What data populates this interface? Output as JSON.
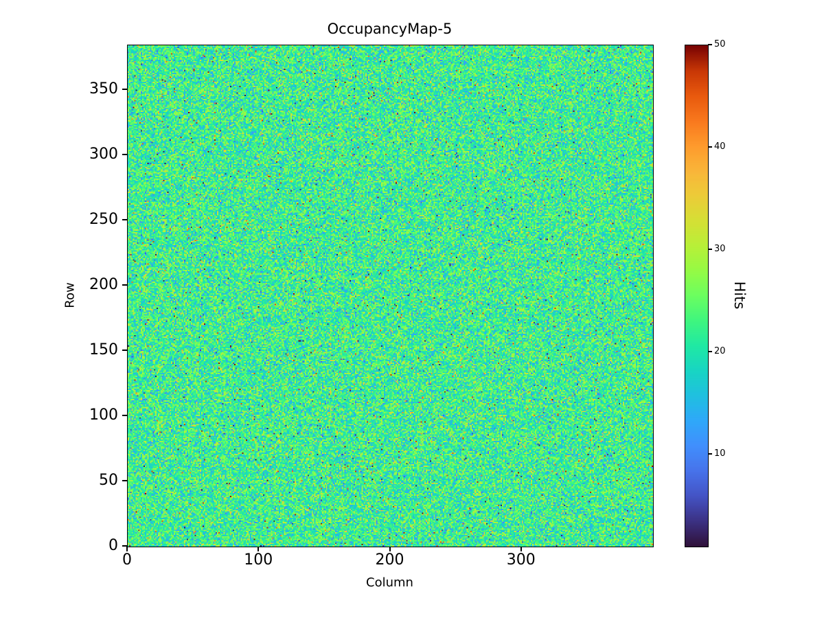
{
  "figure": {
    "background_color": "#ffffff",
    "text_color": "#000000"
  },
  "chart_data": {
    "type": "heatmap",
    "title": "OccupancyMap-5",
    "xlabel": "Column",
    "ylabel": "Row",
    "colorbar_label": "Hits",
    "grid": false,
    "grid_cols": 400,
    "grid_rows": 384,
    "xlim": [
      0,
      400
    ],
    "ylim": [
      0,
      384
    ],
    "xticks": [
      0,
      100,
      200,
      300
    ],
    "yticks": [
      0,
      50,
      100,
      150,
      200,
      250,
      300,
      350
    ],
    "colorbar_ticks": [
      10,
      20,
      30,
      40,
      50
    ],
    "vmin": 1,
    "vmax": 50,
    "value_distribution": {
      "kind": "random-poisson-like-noise",
      "mean": 22,
      "sd": 5,
      "outlier_fraction": 0.03,
      "seed": 5
    },
    "colormap": {
      "name": "turbo",
      "stops": [
        "#30123b",
        "#3c3285",
        "#4454c6",
        "#4773eb",
        "#418ffd",
        "#2fa8f9",
        "#20c0e0",
        "#18d5c3",
        "#20e9a4",
        "#3ff67f",
        "#6bfe60",
        "#95fb45",
        "#b8f038",
        "#d5e035",
        "#eccc38",
        "#f9b63a",
        "#fe9b2d",
        "#f9791e",
        "#e95a0e",
        "#c93806",
        "#7a0403"
      ]
    }
  }
}
